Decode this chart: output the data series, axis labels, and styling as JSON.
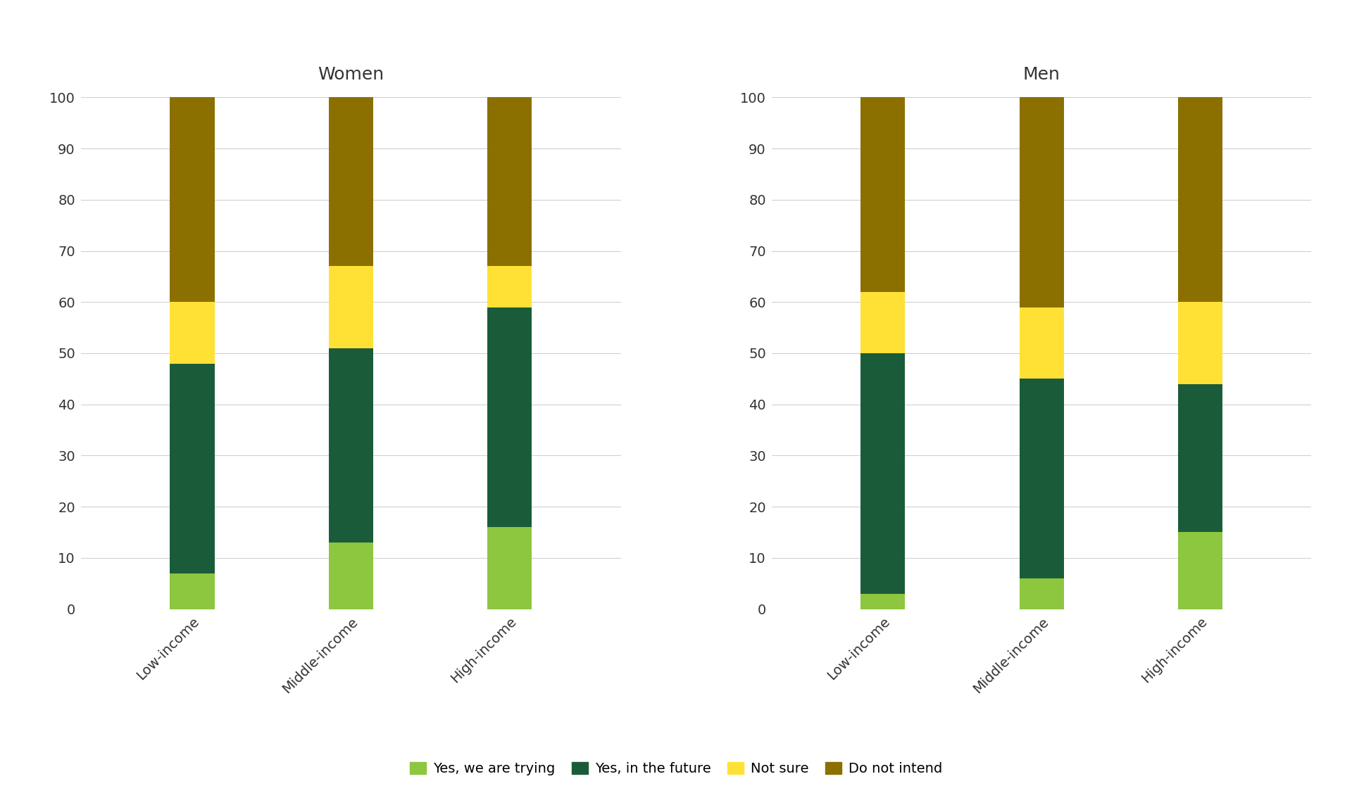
{
  "groups": [
    "Women",
    "Men"
  ],
  "categories": [
    "Low-income",
    "Middle-income",
    "High-income"
  ],
  "series": [
    "Yes, we are trying",
    "Yes, in the future",
    "Not sure",
    "Do not intend"
  ],
  "colors": [
    "#8dc63f",
    "#1a5c3a",
    "#ffe135",
    "#8b7000"
  ],
  "women": {
    "Yes, we are trying": [
      7,
      13,
      16
    ],
    "Yes, in the future": [
      41,
      38,
      43
    ],
    "Not sure": [
      12,
      16,
      8
    ],
    "Do not intend": [
      40,
      33,
      33
    ]
  },
  "men": {
    "Yes, we are trying": [
      3,
      6,
      15
    ],
    "Yes, in the future": [
      47,
      39,
      29
    ],
    "Not sure": [
      12,
      14,
      16
    ],
    "Do not intend": [
      38,
      41,
      40
    ]
  },
  "background_color": "#ffffff",
  "grid_color": "#d0d0d0",
  "bar_width": 0.28,
  "ylim": [
    0,
    100
  ],
  "yticks": [
    0,
    10,
    20,
    30,
    40,
    50,
    60,
    70,
    80,
    90,
    100
  ],
  "title_women": "Women",
  "title_men": "Men",
  "title_fontsize": 18,
  "tick_fontsize": 14,
  "legend_fontsize": 14
}
